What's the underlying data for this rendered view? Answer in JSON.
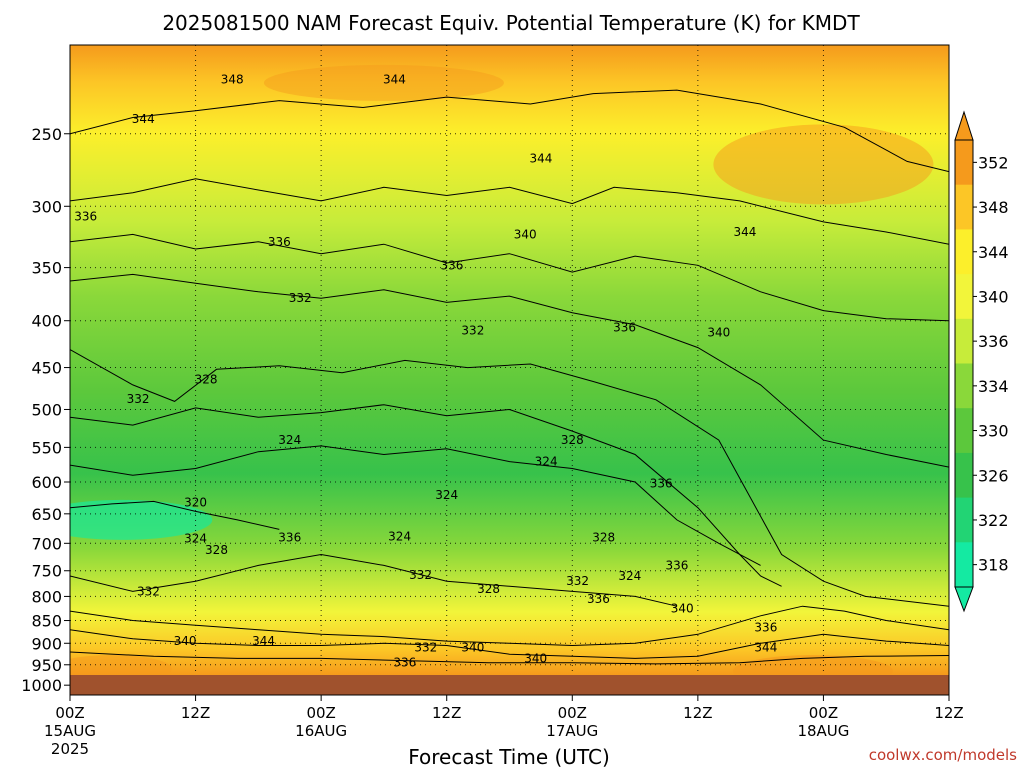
{
  "chart_data": {
    "type": "heatmap",
    "title": "2025081500 NAM Forecast Equiv. Potential Temperature (K) for KMDT",
    "xlabel": "Forecast Time (UTC)",
    "ylabel": "",
    "credit": "coolwx.com/models",
    "x_ticks": [
      {
        "hour": 0,
        "line1": "00Z",
        "line2": "15AUG",
        "line3": "2025"
      },
      {
        "hour": 12,
        "line1": "12Z",
        "line2": "",
        "line3": ""
      },
      {
        "hour": 24,
        "line1": "00Z",
        "line2": "16AUG",
        "line3": ""
      },
      {
        "hour": 36,
        "line1": "12Z",
        "line2": "",
        "line3": ""
      },
      {
        "hour": 48,
        "line1": "00Z",
        "line2": "17AUG",
        "line3": ""
      },
      {
        "hour": 60,
        "line1": "12Z",
        "line2": "",
        "line3": ""
      },
      {
        "hour": 72,
        "line1": "00Z",
        "line2": "18AUG",
        "line3": ""
      },
      {
        "hour": 84,
        "line1": "12Z",
        "line2": "",
        "line3": ""
      }
    ],
    "x_range_hours": [
      0,
      84
    ],
    "y_ticks": [
      250,
      300,
      350,
      400,
      450,
      500,
      550,
      600,
      650,
      700,
      750,
      800,
      850,
      900,
      950,
      1000
    ],
    "y_range_hpa": [
      200,
      1025
    ],
    "y_scale": "log",
    "grid": true,
    "colorbar": {
      "labels": [
        352,
        348,
        344,
        340,
        336,
        334,
        330,
        326,
        322,
        318
      ],
      "colors": [
        "#f59a1c",
        "#fcc626",
        "#fcef2b",
        "#f2f53a",
        "#c7ec3a",
        "#8ad83a",
        "#5cc83c",
        "#37c24b",
        "#22d474",
        "#14eaa2"
      ],
      "extend": "both"
    },
    "series": [
      {
        "level": 348,
        "points": [
          [
            0,
            250
          ],
          [
            6,
            240
          ],
          [
            12,
            236
          ],
          [
            20,
            230
          ],
          [
            28,
            234
          ],
          [
            36,
            228
          ],
          [
            44,
            232
          ],
          [
            50,
            226
          ],
          [
            58,
            224
          ],
          [
            66,
            232
          ],
          [
            74,
            246
          ],
          [
            80,
            268
          ],
          [
            84,
            275
          ]
        ]
      },
      {
        "level": 344,
        "points": [
          [
            0,
            296
          ],
          [
            6,
            290
          ],
          [
            12,
            280
          ],
          [
            18,
            288
          ],
          [
            24,
            296
          ],
          [
            30,
            286
          ],
          [
            36,
            292
          ],
          [
            42,
            286
          ],
          [
            48,
            298
          ],
          [
            52,
            286
          ],
          [
            58,
            290
          ],
          [
            64,
            296
          ],
          [
            72,
            312
          ],
          [
            78,
            320
          ],
          [
            84,
            330
          ]
        ]
      },
      {
        "level": 340,
        "points": [
          [
            0,
            328
          ],
          [
            6,
            322
          ],
          [
            12,
            334
          ],
          [
            18,
            328
          ],
          [
            24,
            338
          ],
          [
            30,
            330
          ],
          [
            36,
            346
          ],
          [
            42,
            338
          ],
          [
            48,
            354
          ],
          [
            54,
            340
          ],
          [
            60,
            348
          ],
          [
            66,
            372
          ],
          [
            72,
            390
          ],
          [
            78,
            398
          ],
          [
            84,
            400
          ]
        ]
      },
      {
        "level": 336,
        "points": [
          [
            0,
            362
          ],
          [
            6,
            356
          ],
          [
            12,
            364
          ],
          [
            18,
            372
          ],
          [
            24,
            378
          ],
          [
            30,
            370
          ],
          [
            36,
            382
          ],
          [
            42,
            376
          ],
          [
            48,
            392
          ],
          [
            54,
            404
          ],
          [
            60,
            428
          ],
          [
            66,
            470
          ],
          [
            72,
            540
          ],
          [
            78,
            560
          ],
          [
            84,
            578
          ]
        ]
      },
      {
        "level": 332,
        "points": [
          [
            0,
            430
          ],
          [
            6,
            470
          ],
          [
            10,
            490
          ],
          [
            14,
            452
          ],
          [
            20,
            448
          ],
          [
            26,
            456
          ],
          [
            32,
            442
          ],
          [
            38,
            450
          ],
          [
            44,
            446
          ],
          [
            50,
            466
          ],
          [
            56,
            488
          ],
          [
            62,
            540
          ],
          [
            68,
            720
          ],
          [
            72,
            770
          ],
          [
            76,
            800
          ],
          [
            84,
            820
          ]
        ]
      },
      {
        "level": 328,
        "points": [
          [
            0,
            510
          ],
          [
            6,
            520
          ],
          [
            12,
            498
          ],
          [
            18,
            510
          ],
          [
            24,
            504
          ],
          [
            30,
            494
          ],
          [
            36,
            508
          ],
          [
            42,
            500
          ],
          [
            48,
            528
          ],
          [
            54,
            560
          ],
          [
            60,
            640
          ],
          [
            64,
            720
          ],
          [
            66,
            760
          ],
          [
            68,
            780
          ]
        ]
      },
      {
        "level": 324,
        "points": [
          [
            0,
            575
          ],
          [
            6,
            590
          ],
          [
            12,
            580
          ],
          [
            18,
            556
          ],
          [
            24,
            548
          ],
          [
            30,
            560
          ],
          [
            36,
            552
          ],
          [
            42,
            570
          ],
          [
            48,
            580
          ],
          [
            54,
            600
          ],
          [
            58,
            660
          ],
          [
            62,
            700
          ],
          [
            66,
            740
          ]
        ]
      },
      {
        "level": 320,
        "points": [
          [
            0,
            640
          ],
          [
            4,
            634
          ],
          [
            8,
            630
          ],
          [
            12,
            646
          ],
          [
            16,
            660
          ],
          [
            20,
            676
          ]
        ]
      },
      {
        "level": 332,
        "points": [
          [
            0,
            760
          ],
          [
            6,
            790
          ],
          [
            12,
            770
          ],
          [
            18,
            740
          ],
          [
            24,
            720
          ],
          [
            30,
            740
          ],
          [
            36,
            770
          ],
          [
            42,
            780
          ],
          [
            48,
            790
          ],
          [
            54,
            800
          ],
          [
            58,
            820
          ]
        ]
      },
      {
        "level": 336,
        "points": [
          [
            0,
            830
          ],
          [
            6,
            850
          ],
          [
            12,
            860
          ],
          [
            18,
            870
          ],
          [
            24,
            880
          ],
          [
            30,
            885
          ],
          [
            36,
            895
          ],
          [
            42,
            900
          ],
          [
            48,
            905
          ],
          [
            54,
            900
          ],
          [
            60,
            880
          ],
          [
            66,
            840
          ],
          [
            70,
            820
          ],
          [
            74,
            830
          ],
          [
            78,
            850
          ],
          [
            84,
            870
          ]
        ]
      },
      {
        "level": 340,
        "points": [
          [
            0,
            870
          ],
          [
            6,
            890
          ],
          [
            12,
            900
          ],
          [
            18,
            905
          ],
          [
            24,
            905
          ],
          [
            30,
            900
          ],
          [
            36,
            905
          ],
          [
            42,
            925
          ],
          [
            48,
            930
          ],
          [
            54,
            935
          ],
          [
            60,
            930
          ],
          [
            66,
            900
          ],
          [
            72,
            880
          ],
          [
            78,
            895
          ],
          [
            84,
            905
          ]
        ]
      },
      {
        "level": 344,
        "points": [
          [
            0,
            920
          ],
          [
            8,
            930
          ],
          [
            16,
            935
          ],
          [
            24,
            935
          ],
          [
            32,
            940
          ],
          [
            40,
            945
          ],
          [
            48,
            945
          ],
          [
            56,
            948
          ],
          [
            64,
            945
          ],
          [
            70,
            935
          ],
          [
            76,
            930
          ],
          [
            84,
            928
          ]
        ]
      }
    ],
    "contour_labels": [
      {
        "text": "348",
        "h": 15.5,
        "p": 218
      },
      {
        "text": "344",
        "h": 31,
        "p": 218
      },
      {
        "text": "344",
        "h": 7,
        "p": 241
      },
      {
        "text": "344",
        "h": 45,
        "p": 266
      },
      {
        "text": "336",
        "h": 1.5,
        "p": 308
      },
      {
        "text": "340",
        "h": 43.5,
        "p": 322
      },
      {
        "text": "344",
        "h": 64.5,
        "p": 320
      },
      {
        "text": "336",
        "h": 20,
        "p": 328
      },
      {
        "text": "336",
        "h": 36.5,
        "p": 348
      },
      {
        "text": "332",
        "h": 22,
        "p": 378
      },
      {
        "text": "332",
        "h": 38.5,
        "p": 410
      },
      {
        "text": "336",
        "h": 53,
        "p": 407
      },
      {
        "text": "340",
        "h": 62,
        "p": 412
      },
      {
        "text": "328",
        "h": 13,
        "p": 464
      },
      {
        "text": "332",
        "h": 6.5,
        "p": 487
      },
      {
        "text": "324",
        "h": 21,
        "p": 540
      },
      {
        "text": "328",
        "h": 48,
        "p": 540
      },
      {
        "text": "324",
        "h": 45.5,
        "p": 570
      },
      {
        "text": "336",
        "h": 56.5,
        "p": 602
      },
      {
        "text": "320",
        "h": 12,
        "p": 632
      },
      {
        "text": "324",
        "h": 36,
        "p": 620
      },
      {
        "text": "324",
        "h": 12,
        "p": 692
      },
      {
        "text": "328",
        "h": 14,
        "p": 712
      },
      {
        "text": "336",
        "h": 21,
        "p": 690
      },
      {
        "text": "324",
        "h": 31.5,
        "p": 688
      },
      {
        "text": "328",
        "h": 51,
        "p": 690
      },
      {
        "text": "332",
        "h": 33.5,
        "p": 758
      },
      {
        "text": "324",
        "h": 53.5,
        "p": 760
      },
      {
        "text": "336",
        "h": 58,
        "p": 740
      },
      {
        "text": "332",
        "h": 7.5,
        "p": 790
      },
      {
        "text": "328",
        "h": 40,
        "p": 785
      },
      {
        "text": "332",
        "h": 48.5,
        "p": 770
      },
      {
        "text": "336",
        "h": 50.5,
        "p": 805
      },
      {
        "text": "340",
        "h": 58.5,
        "p": 825
      },
      {
        "text": "336",
        "h": 66.5,
        "p": 865
      },
      {
        "text": "340",
        "h": 11,
        "p": 895
      },
      {
        "text": "344",
        "h": 18.5,
        "p": 895
      },
      {
        "text": "332",
        "h": 34,
        "p": 910
      },
      {
        "text": "340",
        "h": 38.5,
        "p": 910
      },
      {
        "text": "344",
        "h": 66.5,
        "p": 910
      },
      {
        "text": "340",
        "h": 44.5,
        "p": 935
      },
      {
        "text": "336",
        "h": 32,
        "p": 945
      }
    ]
  }
}
